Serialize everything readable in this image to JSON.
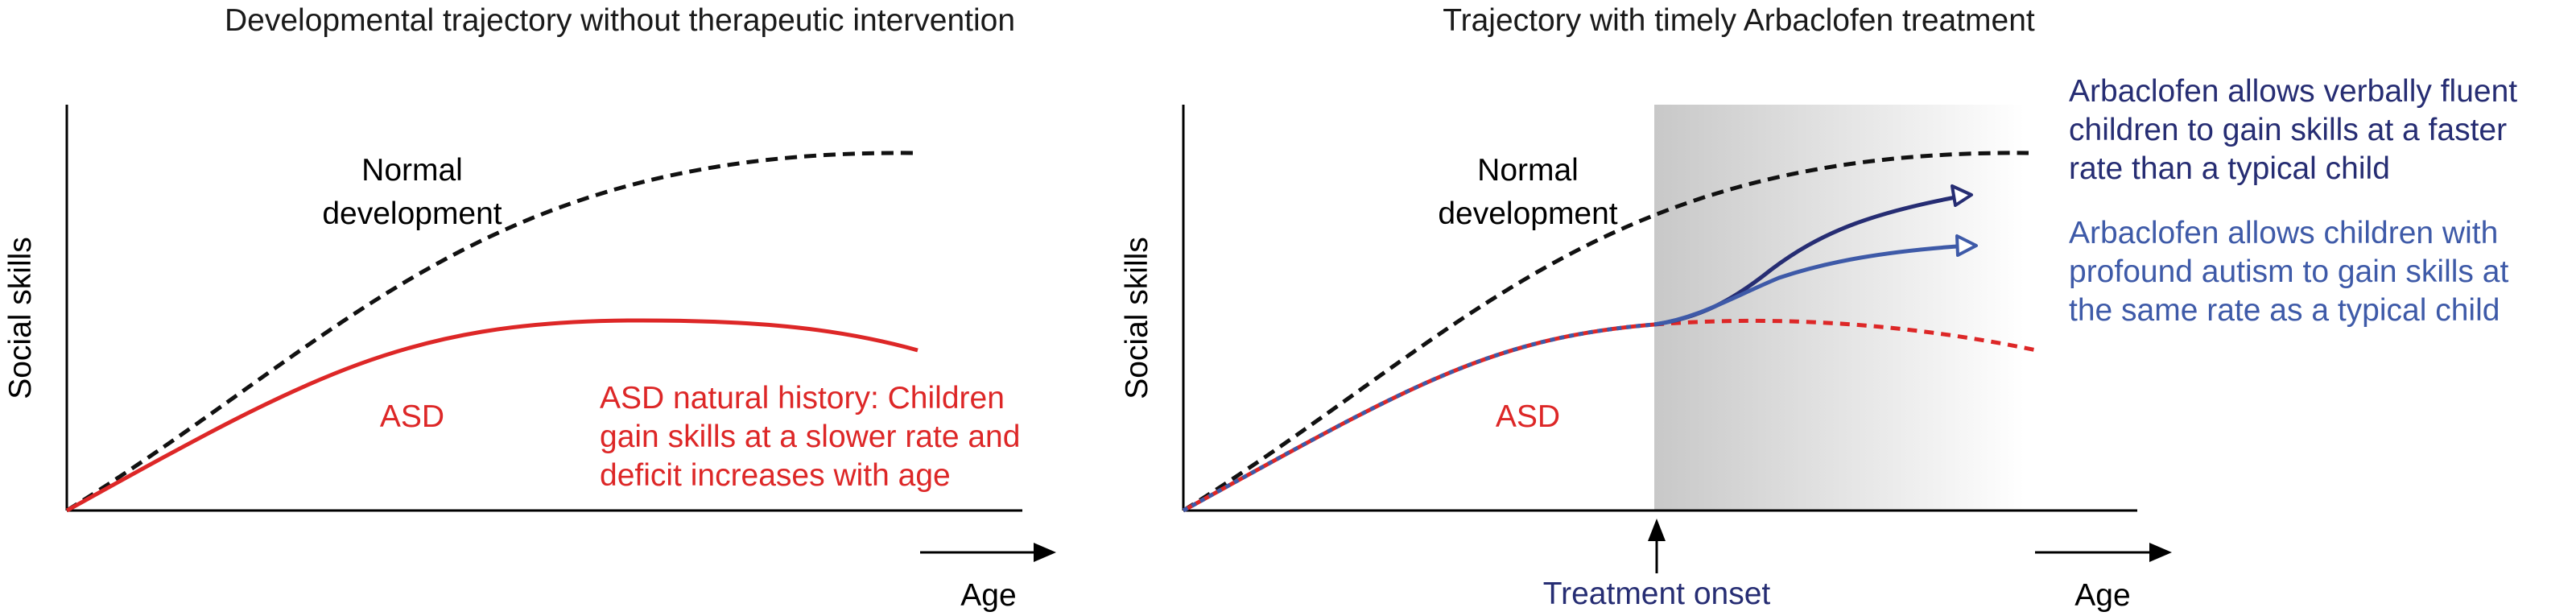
{
  "colors": {
    "normal": "#111111",
    "asd": "#dd2727",
    "fluent": "#262d73",
    "profound": "#3e5aa8",
    "shade_start": "#c8c8c8",
    "shade_end": "#ffffff",
    "onset_label": "#262d73"
  },
  "left_panel": {
    "title": "Developmental trajectory without therapeutic intervention",
    "ylabel": "Social skills",
    "xlabel": "Age",
    "normal_label_line1": "Normal",
    "normal_label_line2": "development",
    "asd_label": "ASD",
    "asd_note": [
      "ASD natural history: Children",
      "gain skills at a slower rate and",
      "deficit increases with age"
    ]
  },
  "right_panel": {
    "title": "Trajectory with timely Arbaclofen treatment",
    "ylabel": "Social skills",
    "xlabel": "Age",
    "normal_label_line1": "Normal",
    "normal_label_line2": "development",
    "asd_label": "ASD",
    "treatment_label": "Treatment onset",
    "fluent_note": [
      "Arbaclofen allows verbally fluent",
      "children to gain skills at a faster",
      "rate than a typical child"
    ],
    "profound_note": [
      "Arbaclofen allows children with",
      "profound autism to gain skills at",
      "the same rate as a typical child"
    ]
  }
}
